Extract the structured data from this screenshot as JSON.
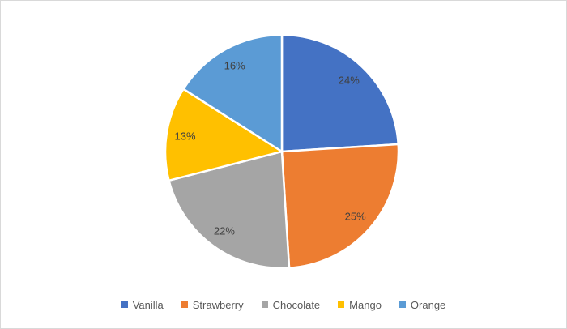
{
  "chart_data": {
    "type": "pie",
    "title": "",
    "categories": [
      "Vanilla",
      "Strawberry",
      "Chocolate",
      "Mango",
      "Orange"
    ],
    "values": [
      24,
      25,
      22,
      13,
      16
    ],
    "data_labels": [
      "24%",
      "25%",
      "22%",
      "13%",
      "16%"
    ],
    "colors": [
      "#4472C4",
      "#ED7D31",
      "#A5A5A5",
      "#FFC000",
      "#5B9BD5"
    ],
    "start_angle_deg": 0,
    "direction": "clockwise",
    "legend_position": "bottom",
    "label_color": "#404040",
    "legend_text_color": "#595959",
    "slice_border_color": "#FFFFFF"
  },
  "legend": {
    "items": [
      {
        "label": "Vanilla",
        "color": "#4472C4"
      },
      {
        "label": "Strawberry",
        "color": "#ED7D31"
      },
      {
        "label": "Chocolate",
        "color": "#A5A5A5"
      },
      {
        "label": "Mango",
        "color": "#FFC000"
      },
      {
        "label": "Orange",
        "color": "#5B9BD5"
      }
    ]
  }
}
